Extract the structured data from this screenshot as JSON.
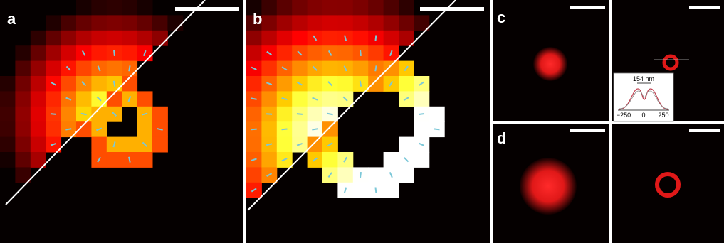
{
  "panels": [
    {
      "label": "a"
    },
    {
      "label": "b"
    },
    {
      "label": "c"
    },
    {
      "label": "d"
    }
  ],
  "inset": {
    "annotation": "154 nm",
    "x_tick_labels": [
      "−250",
      "0",
      "250"
    ]
  }
}
